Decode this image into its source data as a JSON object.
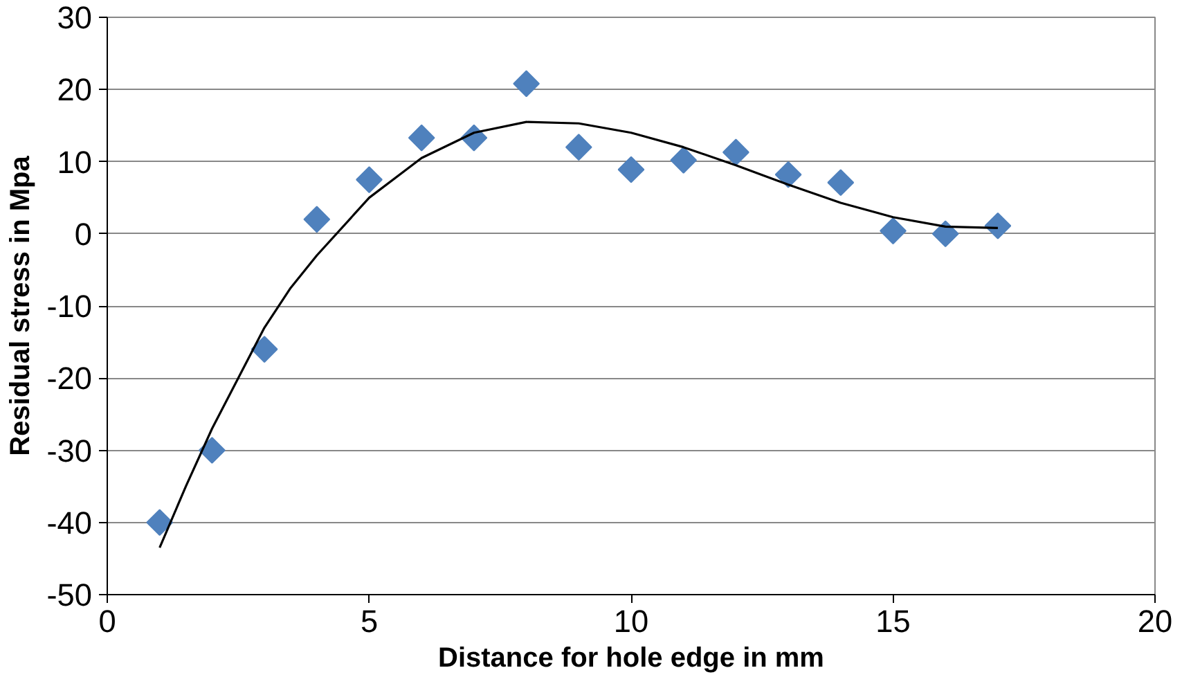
{
  "chart_data": {
    "type": "scatter",
    "xlabel": "Distance for hole edge in mm",
    "ylabel": "Residual stress in Mpa",
    "xlim": [
      0,
      20
    ],
    "xticks": [
      0,
      5,
      10,
      15,
      20
    ],
    "ylim": [
      -50,
      30
    ],
    "yticks": [
      -50,
      -40,
      -30,
      -20,
      -10,
      0,
      10,
      20,
      30
    ],
    "grid": "y",
    "marker": "diamond",
    "series": [
      {
        "color": "#4f81bd",
        "x": [
          1,
          2,
          3,
          4,
          5,
          6,
          7,
          8,
          9,
          10,
          11,
          12,
          13,
          14,
          15,
          16,
          17
        ],
        "values": [
          -40,
          -30,
          -16,
          2,
          7.5,
          13.3,
          13.3,
          20.8,
          12,
          8.9,
          10.2,
          11.3,
          8.2,
          7.1,
          0.4,
          0,
          1.1
        ]
      },
      {
        "type": "line",
        "color": "#000000",
        "marker": "none",
        "line_style": "solid",
        "x": [
          1,
          1.5,
          2,
          2.5,
          3,
          3.5,
          4,
          5,
          6,
          7,
          8,
          9,
          10,
          11,
          12,
          13,
          14,
          15,
          16,
          17
        ],
        "values": [
          -43.5,
          -35,
          -27,
          -20,
          -13,
          -7.5,
          -3,
          5,
          10.5,
          14,
          15.5,
          15.3,
          14,
          12,
          9.5,
          6.8,
          4.3,
          2.3,
          1,
          0.8
        ]
      }
    ]
  }
}
